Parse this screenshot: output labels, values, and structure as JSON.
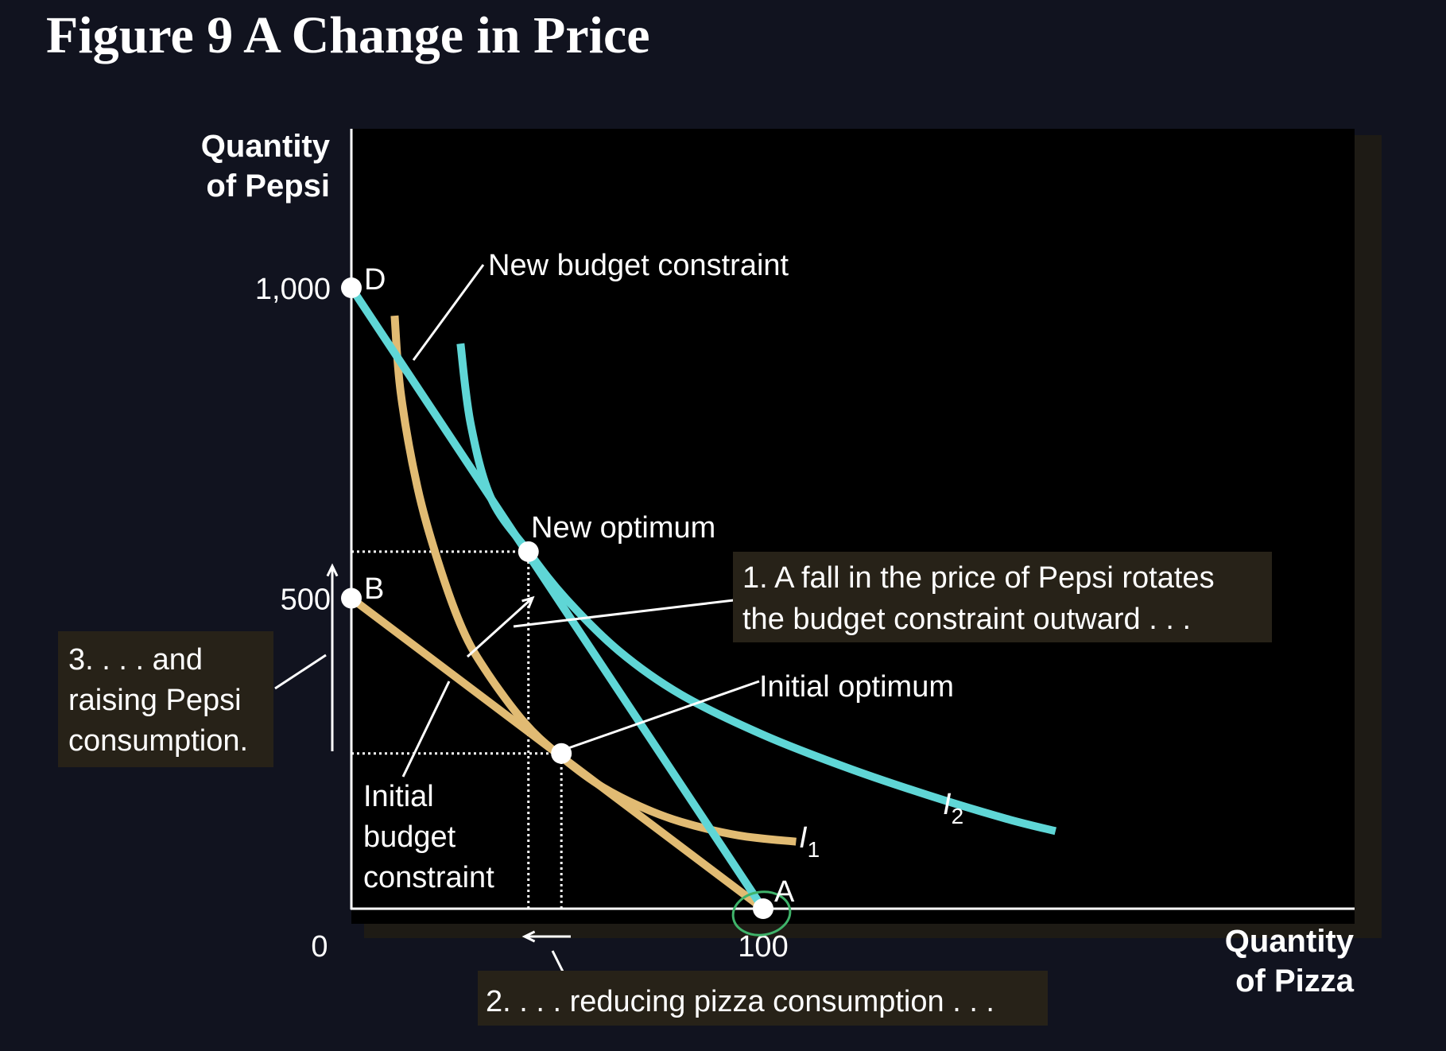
{
  "title": "Figure 9 A Change in Price",
  "chart_data": {
    "type": "line",
    "xlabel": [
      "Quantity",
      "of Pizza"
    ],
    "ylabel": [
      "Quantity",
      "of Pepsi"
    ],
    "x_ticks": [
      {
        "value": 0,
        "label": "0"
      },
      {
        "value": 100,
        "label": "100"
      }
    ],
    "y_ticks": [
      {
        "value": 1000,
        "label": "1,000"
      },
      {
        "value": 500,
        "label": "500"
      }
    ],
    "xlim": [
      0,
      245
    ],
    "ylim": [
      0,
      1250
    ],
    "series": [
      {
        "name": "Initial budget constraint",
        "color": "#e1bb73",
        "points": [
          [
            0,
            500
          ],
          [
            100,
            0
          ]
        ]
      },
      {
        "name": "New budget constraint",
        "color": "#5fd6d6",
        "points": [
          [
            0,
            1000
          ],
          [
            100,
            0
          ]
        ]
      },
      {
        "name": "I1",
        "color": "#e1bb73",
        "points": [
          [
            10.5,
            955
          ],
          [
            12,
            830
          ],
          [
            16,
            680
          ],
          [
            21,
            560
          ],
          [
            27,
            450
          ],
          [
            33,
            380
          ],
          [
            42,
            300
          ],
          [
            50,
            250
          ],
          [
            60,
            200
          ],
          [
            70,
            165
          ],
          [
            80,
            140
          ],
          [
            94,
            118
          ],
          [
            108,
            108
          ]
        ]
      },
      {
        "name": "I2",
        "color": "#5fd6d6",
        "points": [
          [
            26.5,
            910
          ],
          [
            29,
            780
          ],
          [
            34,
            660
          ],
          [
            43,
            575
          ],
          [
            52,
            500
          ],
          [
            65,
            415
          ],
          [
            80,
            345
          ],
          [
            100,
            280
          ],
          [
            120,
            228
          ],
          [
            140,
            183
          ],
          [
            159,
            145
          ],
          [
            171,
            125
          ]
        ]
      }
    ],
    "points": [
      {
        "label": "D",
        "x": 0,
        "y": 1000
      },
      {
        "label": "B",
        "x": 0,
        "y": 500
      },
      {
        "label": "A",
        "x": 100,
        "y": 0
      },
      {
        "label": "New optimum",
        "x": 43,
        "y": 575
      },
      {
        "label": "Initial optimum",
        "x": 51,
        "y": 250
      }
    ],
    "guides": [
      {
        "from": [
          0,
          575
        ],
        "to": [
          43,
          575
        ]
      },
      {
        "from": [
          0,
          250
        ],
        "to": [
          51,
          250
        ]
      },
      {
        "from": [
          43,
          0
        ],
        "to": [
          43,
          575
        ]
      },
      {
        "from": [
          51,
          0
        ],
        "to": [
          51,
          250
        ]
      }
    ],
    "curve_labels": [
      {
        "text": "I",
        "sub": "1",
        "x": 110,
        "y": 108
      },
      {
        "text": "I",
        "sub": "2",
        "x": 174,
        "y": 120
      }
    ],
    "annotations": [
      {
        "id": "new_bc",
        "lines": [
          "New budget constraint"
        ]
      },
      {
        "id": "new_opt",
        "lines": [
          "New optimum"
        ]
      },
      {
        "id": "initial_opt",
        "lines": [
          "Initial optimum"
        ]
      },
      {
        "id": "initial_bc",
        "lines": [
          "Initial",
          "budget",
          "constraint"
        ]
      },
      {
        "id": "note1",
        "lines": [
          "1. A fall in the price of Pepsi rotates",
          "the budget constraint outward . . ."
        ]
      },
      {
        "id": "note2",
        "lines": [
          "2. . . . reducing pizza consumption . . ."
        ]
      },
      {
        "id": "note3",
        "lines": [
          "3. . . . and",
          "raising Pepsi",
          "consumption."
        ]
      }
    ]
  },
  "colors": {
    "page_bg": "#11131f",
    "plot_bg": "#000000",
    "plot_shadow": "#1e1b15",
    "gold": "#e1bb73",
    "teal": "#5fd6d6",
    "note_box": "#272218",
    "highlight": "#3fb36a"
  }
}
